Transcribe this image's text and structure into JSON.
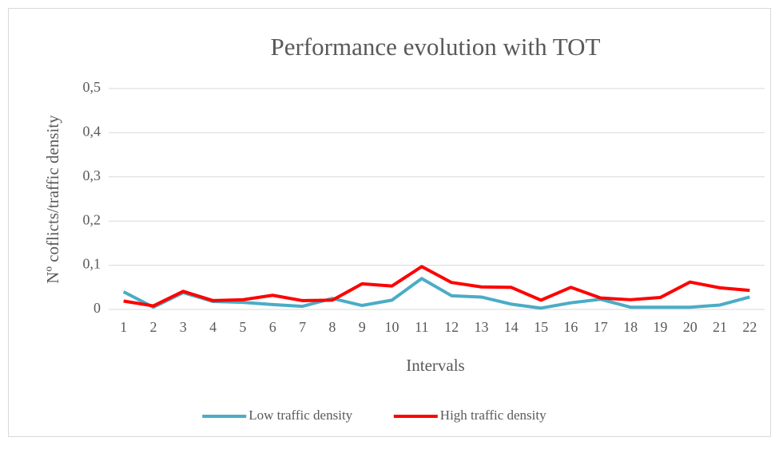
{
  "chart_data": {
    "type": "line",
    "title": "Performance evolution with TOT",
    "xlabel": "Intervals",
    "ylabel": "Nº coflicts/traffic density",
    "categories": [
      "1",
      "2",
      "3",
      "4",
      "5",
      "6",
      "7",
      "8",
      "9",
      "10",
      "11",
      "12",
      "13",
      "14",
      "15",
      "16",
      "17",
      "18",
      "19",
      "20",
      "21",
      "22"
    ],
    "series": [
      {
        "name": "Low traffic density",
        "color": "#4bacc6",
        "values": [
          0.04,
          0.005,
          0.038,
          0.018,
          0.016,
          0.011,
          0.007,
          0.025,
          0.009,
          0.021,
          0.07,
          0.031,
          0.028,
          0.012,
          0.003,
          0.015,
          0.023,
          0.005,
          0.005,
          0.005,
          0.01,
          0.028
        ]
      },
      {
        "name": "High traffic density",
        "color": "#ff0000",
        "values": [
          0.019,
          0.008,
          0.041,
          0.02,
          0.022,
          0.032,
          0.02,
          0.021,
          0.058,
          0.053,
          0.097,
          0.061,
          0.051,
          0.05,
          0.021,
          0.05,
          0.026,
          0.022,
          0.027,
          0.062,
          0.049,
          0.043
        ]
      }
    ],
    "ylim": [
      0,
      0.5
    ],
    "yticks": [
      0,
      {
        "value": 0.1,
        "label": "0,1"
      },
      {
        "value": 0.2,
        "label": "0,2"
      },
      {
        "value": 0.3,
        "label": "0,3"
      },
      {
        "value": 0.4,
        "label": "0,4"
      },
      {
        "value": 0.5,
        "label": "0,5"
      }
    ],
    "grid": true,
    "legend": "bottom"
  }
}
